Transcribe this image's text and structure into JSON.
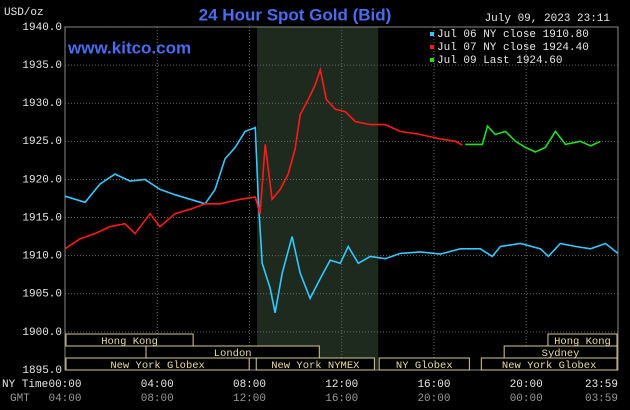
{
  "chart_data": {
    "type": "line",
    "title": "24 Hour Spot Gold (Bid)",
    "unit_label": "USD/oz",
    "timestamp": "July 09, 2023 23:11",
    "site": "www.kitco.com",
    "x_axis_labels": [
      "NY Time",
      "GMT"
    ],
    "xlim": [
      0,
      23.98
    ],
    "ylim": [
      1895,
      1940
    ],
    "xticks": [
      {
        "value": 0,
        "label": "00:00"
      },
      {
        "value": 4,
        "label": "04:00"
      },
      {
        "value": 8,
        "label": "08:00"
      },
      {
        "value": 12,
        "label": "12:00"
      },
      {
        "value": 16,
        "label": "16:00"
      },
      {
        "value": 20,
        "label": "20:00"
      },
      {
        "value": 23.98,
        "label": "23:59"
      }
    ],
    "gmt_labels": [
      "04:00",
      "08:00",
      "12:00",
      "16:00",
      "20:00",
      "00:00",
      "03:59"
    ],
    "yticks": [
      {
        "value": 1895,
        "label": "1895.0"
      },
      {
        "value": 1900,
        "label": "1900.0"
      },
      {
        "value": 1905,
        "label": "1905.0"
      },
      {
        "value": 1910,
        "label": "1910.0"
      },
      {
        "value": 1915,
        "label": "1915.0"
      },
      {
        "value": 1920,
        "label": "1920.0"
      },
      {
        "value": 1925,
        "label": "1925.0"
      },
      {
        "value": 1930,
        "label": "1930.0"
      },
      {
        "value": 1935,
        "label": "1935.0"
      },
      {
        "value": 1940,
        "label": "1940.0"
      }
    ],
    "grid": true,
    "legend_position": "top-right",
    "highlight": [
      8.33,
      13.58
    ],
    "series": [
      {
        "name": "Jul 06 NY close 1910.80",
        "color": "#33c8ff",
        "x": [
          0,
          0.87,
          1.52,
          2.17,
          2.82,
          3.47,
          4.12,
          4.77,
          5.43,
          6.08,
          6.51,
          6.94,
          7.38,
          7.81,
          8.25,
          8.38,
          8.55,
          8.9,
          9.11,
          9.42,
          9.85,
          10.2,
          10.63,
          11.07,
          11.5,
          11.94,
          12.28,
          12.72,
          13.24,
          13.89,
          14.54,
          15.41,
          16.28,
          17.14,
          18.01,
          18.53,
          18.88,
          19.75,
          20.62,
          20.96,
          21.48,
          22.14,
          22.79,
          23.44,
          23.98
        ],
        "values": [
          1917.8,
          1917.0,
          1919.4,
          1920.7,
          1919.8,
          1920.0,
          1918.7,
          1918.0,
          1917.4,
          1916.8,
          1918.7,
          1922.7,
          1924.2,
          1926.3,
          1926.8,
          1917.4,
          1909.0,
          1905.7,
          1902.5,
          1907.7,
          1912.5,
          1907.7,
          1904.4,
          1907.0,
          1909.4,
          1909.0,
          1911.2,
          1909.0,
          1909.9,
          1909.6,
          1910.3,
          1910.5,
          1910.2,
          1910.9,
          1910.9,
          1909.9,
          1911.2,
          1911.6,
          1910.9,
          1909.9,
          1911.6,
          1911.2,
          1910.9,
          1911.6,
          1910.3
        ]
      },
      {
        "name": "Jul 07 NY close 1924.40",
        "color": "#ff1a1a",
        "x": [
          0,
          0.65,
          1.3,
          1.95,
          2.6,
          3.04,
          3.69,
          4.12,
          4.77,
          5.43,
          6.08,
          6.73,
          7.6,
          8.25,
          8.46,
          8.68,
          8.98,
          9.33,
          9.68,
          9.98,
          10.2,
          10.55,
          10.85,
          11.07,
          11.33,
          11.72,
          12.15,
          12.59,
          13.24,
          13.89,
          14.54,
          15.41,
          16.28,
          16.93,
          17.23
        ],
        "values": [
          1910.9,
          1912.2,
          1912.9,
          1913.8,
          1914.2,
          1912.9,
          1915.5,
          1913.8,
          1915.5,
          1916.1,
          1916.8,
          1916.8,
          1917.4,
          1917.7,
          1915.5,
          1924.6,
          1917.4,
          1918.7,
          1920.7,
          1924.0,
          1928.5,
          1930.5,
          1932.4,
          1934.4,
          1930.5,
          1929.2,
          1928.9,
          1927.6,
          1927.2,
          1927.2,
          1926.3,
          1925.9,
          1925.3,
          1925.0,
          1924.5
        ]
      },
      {
        "name": "Jul 09 Last 1924.60",
        "color": "#22e022",
        "x": [
          17.36,
          18.1,
          18.32,
          18.66,
          19.1,
          19.53,
          19.97,
          20.4,
          20.83,
          21.27,
          21.7,
          22.35,
          22.79,
          23.22
        ],
        "values": [
          1924.6,
          1924.6,
          1927.0,
          1925.9,
          1926.3,
          1925.0,
          1924.2,
          1923.6,
          1924.2,
          1926.3,
          1924.6,
          1925.0,
          1924.4,
          1925.0
        ]
      }
    ],
    "sessions": [
      {
        "label": "Hong Kong",
        "start": 0,
        "end": 5.6,
        "row": 0
      },
      {
        "label": "Hong Kong",
        "start": 20.9,
        "end": 23.98,
        "row": 0
      },
      {
        "label": "London",
        "start": 3.47,
        "end": 11.07,
        "row": 1
      },
      {
        "label": "Sydney",
        "start": 19.0,
        "end": 23.98,
        "row": 1
      },
      {
        "label": "New York Globex",
        "start": 0,
        "end": 8.03,
        "row": 2
      },
      {
        "label": "New York NYMEX",
        "start": 8.25,
        "end": 13.46,
        "row": 2
      },
      {
        "label": "NY Globex",
        "start": 13.58,
        "end": 17.58,
        "row": 2
      },
      {
        "label": "New York Globex",
        "start": 18.01,
        "end": 23.98,
        "row": 2
      }
    ]
  }
}
